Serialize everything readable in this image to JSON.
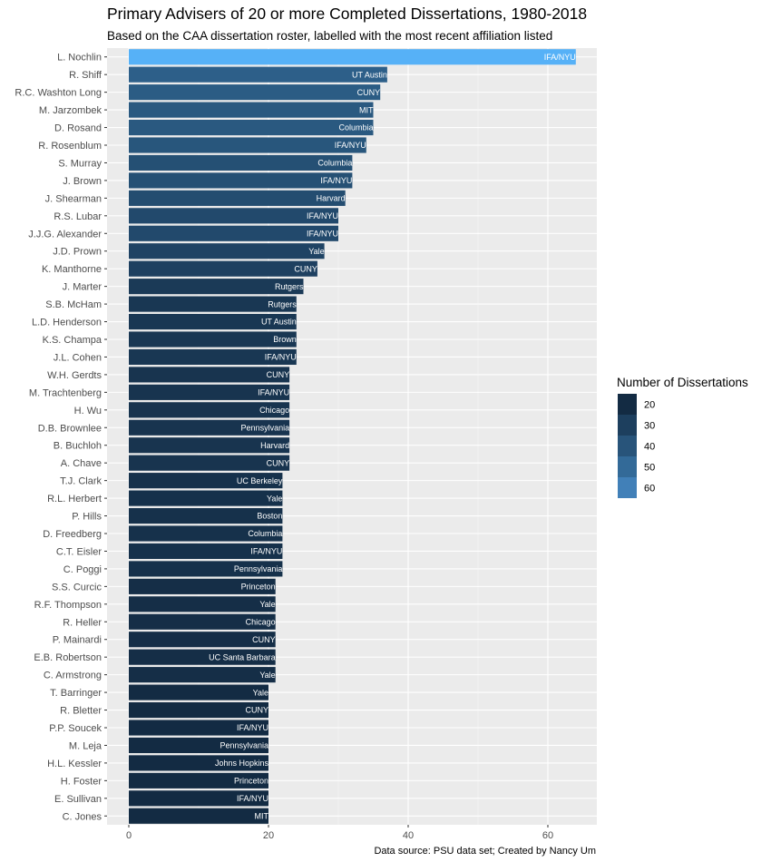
{
  "chart_data": {
    "type": "bar",
    "orientation": "horizontal",
    "title": "Primary Advisers of 20 or more Completed Dissertations, 1980-2018",
    "subtitle": "Based on the CAA dissertation roster, labelled with the most recent affiliation listed",
    "caption": "Data source: PSU data set; Created by Nancy Um",
    "xlabel": "",
    "ylabel": "",
    "xlim": [
      0,
      67
    ],
    "xticks": [
      0,
      20,
      40,
      60
    ],
    "grid": true,
    "legend": {
      "title": "Number of Dissertations",
      "position": "right",
      "entries": [
        20,
        30,
        40,
        50,
        60
      ],
      "colors": [
        "#132b43",
        "#1d3f5e",
        "#28547a",
        "#336a98",
        "#4180b8"
      ]
    },
    "color_low": "#132b43",
    "color_high": "#56b1f7",
    "categories": [
      "L. Nochlin",
      "R. Shiff",
      "R.C. Washton Long",
      "M. Jarzombek",
      "D. Rosand",
      "R. Rosenblum",
      "S. Murray",
      "J. Brown",
      "J. Shearman",
      "R.S. Lubar",
      "J.J.G. Alexander",
      "J.D. Prown",
      "K. Manthorne",
      "J. Marter",
      "S.B. McHam",
      "L.D. Henderson",
      "K.S. Champa",
      "J.L. Cohen",
      "W.H. Gerdts",
      "M. Trachtenberg",
      "H. Wu",
      "D.B. Brownlee",
      "B. Buchloh",
      "A. Chave",
      "T.J. Clark",
      "R.L. Herbert",
      "P. Hills",
      "D. Freedberg",
      "C.T. Eisler",
      "C. Poggi",
      "S.S. Curcic",
      "R.F. Thompson",
      "R. Heller",
      "P. Mainardi",
      "E.B. Robertson",
      "C. Armstrong",
      "T. Barringer",
      "R. Bletter",
      "P.P. Soucek",
      "M. Leja",
      "H.L. Kessler",
      "H. Foster",
      "E. Sullivan",
      "C. Jones"
    ],
    "values": [
      64,
      37,
      36,
      35,
      35,
      34,
      32,
      32,
      31,
      30,
      30,
      28,
      27,
      25,
      24,
      24,
      24,
      24,
      23,
      23,
      23,
      23,
      23,
      23,
      22,
      22,
      22,
      22,
      22,
      22,
      21,
      21,
      21,
      21,
      21,
      21,
      20,
      20,
      20,
      20,
      20,
      20,
      20,
      20
    ],
    "affiliations": [
      "IFA/NYU",
      "UT Austin",
      "CUNY",
      "MIT",
      "Columbia",
      "IFA/NYU",
      "Columbia",
      "IFA/NYU",
      "Harvard",
      "IFA/NYU",
      "IFA/NYU",
      "Yale",
      "CUNY",
      "Rutgers",
      "Rutgers",
      "UT Austin",
      "Brown",
      "IFA/NYU",
      "CUNY",
      "IFA/NYU",
      "Chicago",
      "Pennsylvania",
      "Harvard",
      "CUNY",
      "UC Berkeley",
      "Yale",
      "Boston",
      "Columbia",
      "IFA/NYU",
      "Pennsylvania",
      "Princeton",
      "Yale",
      "Chicago",
      "CUNY",
      "UC Santa Barbara",
      "Yale",
      "Yale",
      "CUNY",
      "IFA/NYU",
      "Pennsylvania",
      "Johns Hopkins",
      "Princeton",
      "IFA/NYU",
      "MIT"
    ]
  }
}
